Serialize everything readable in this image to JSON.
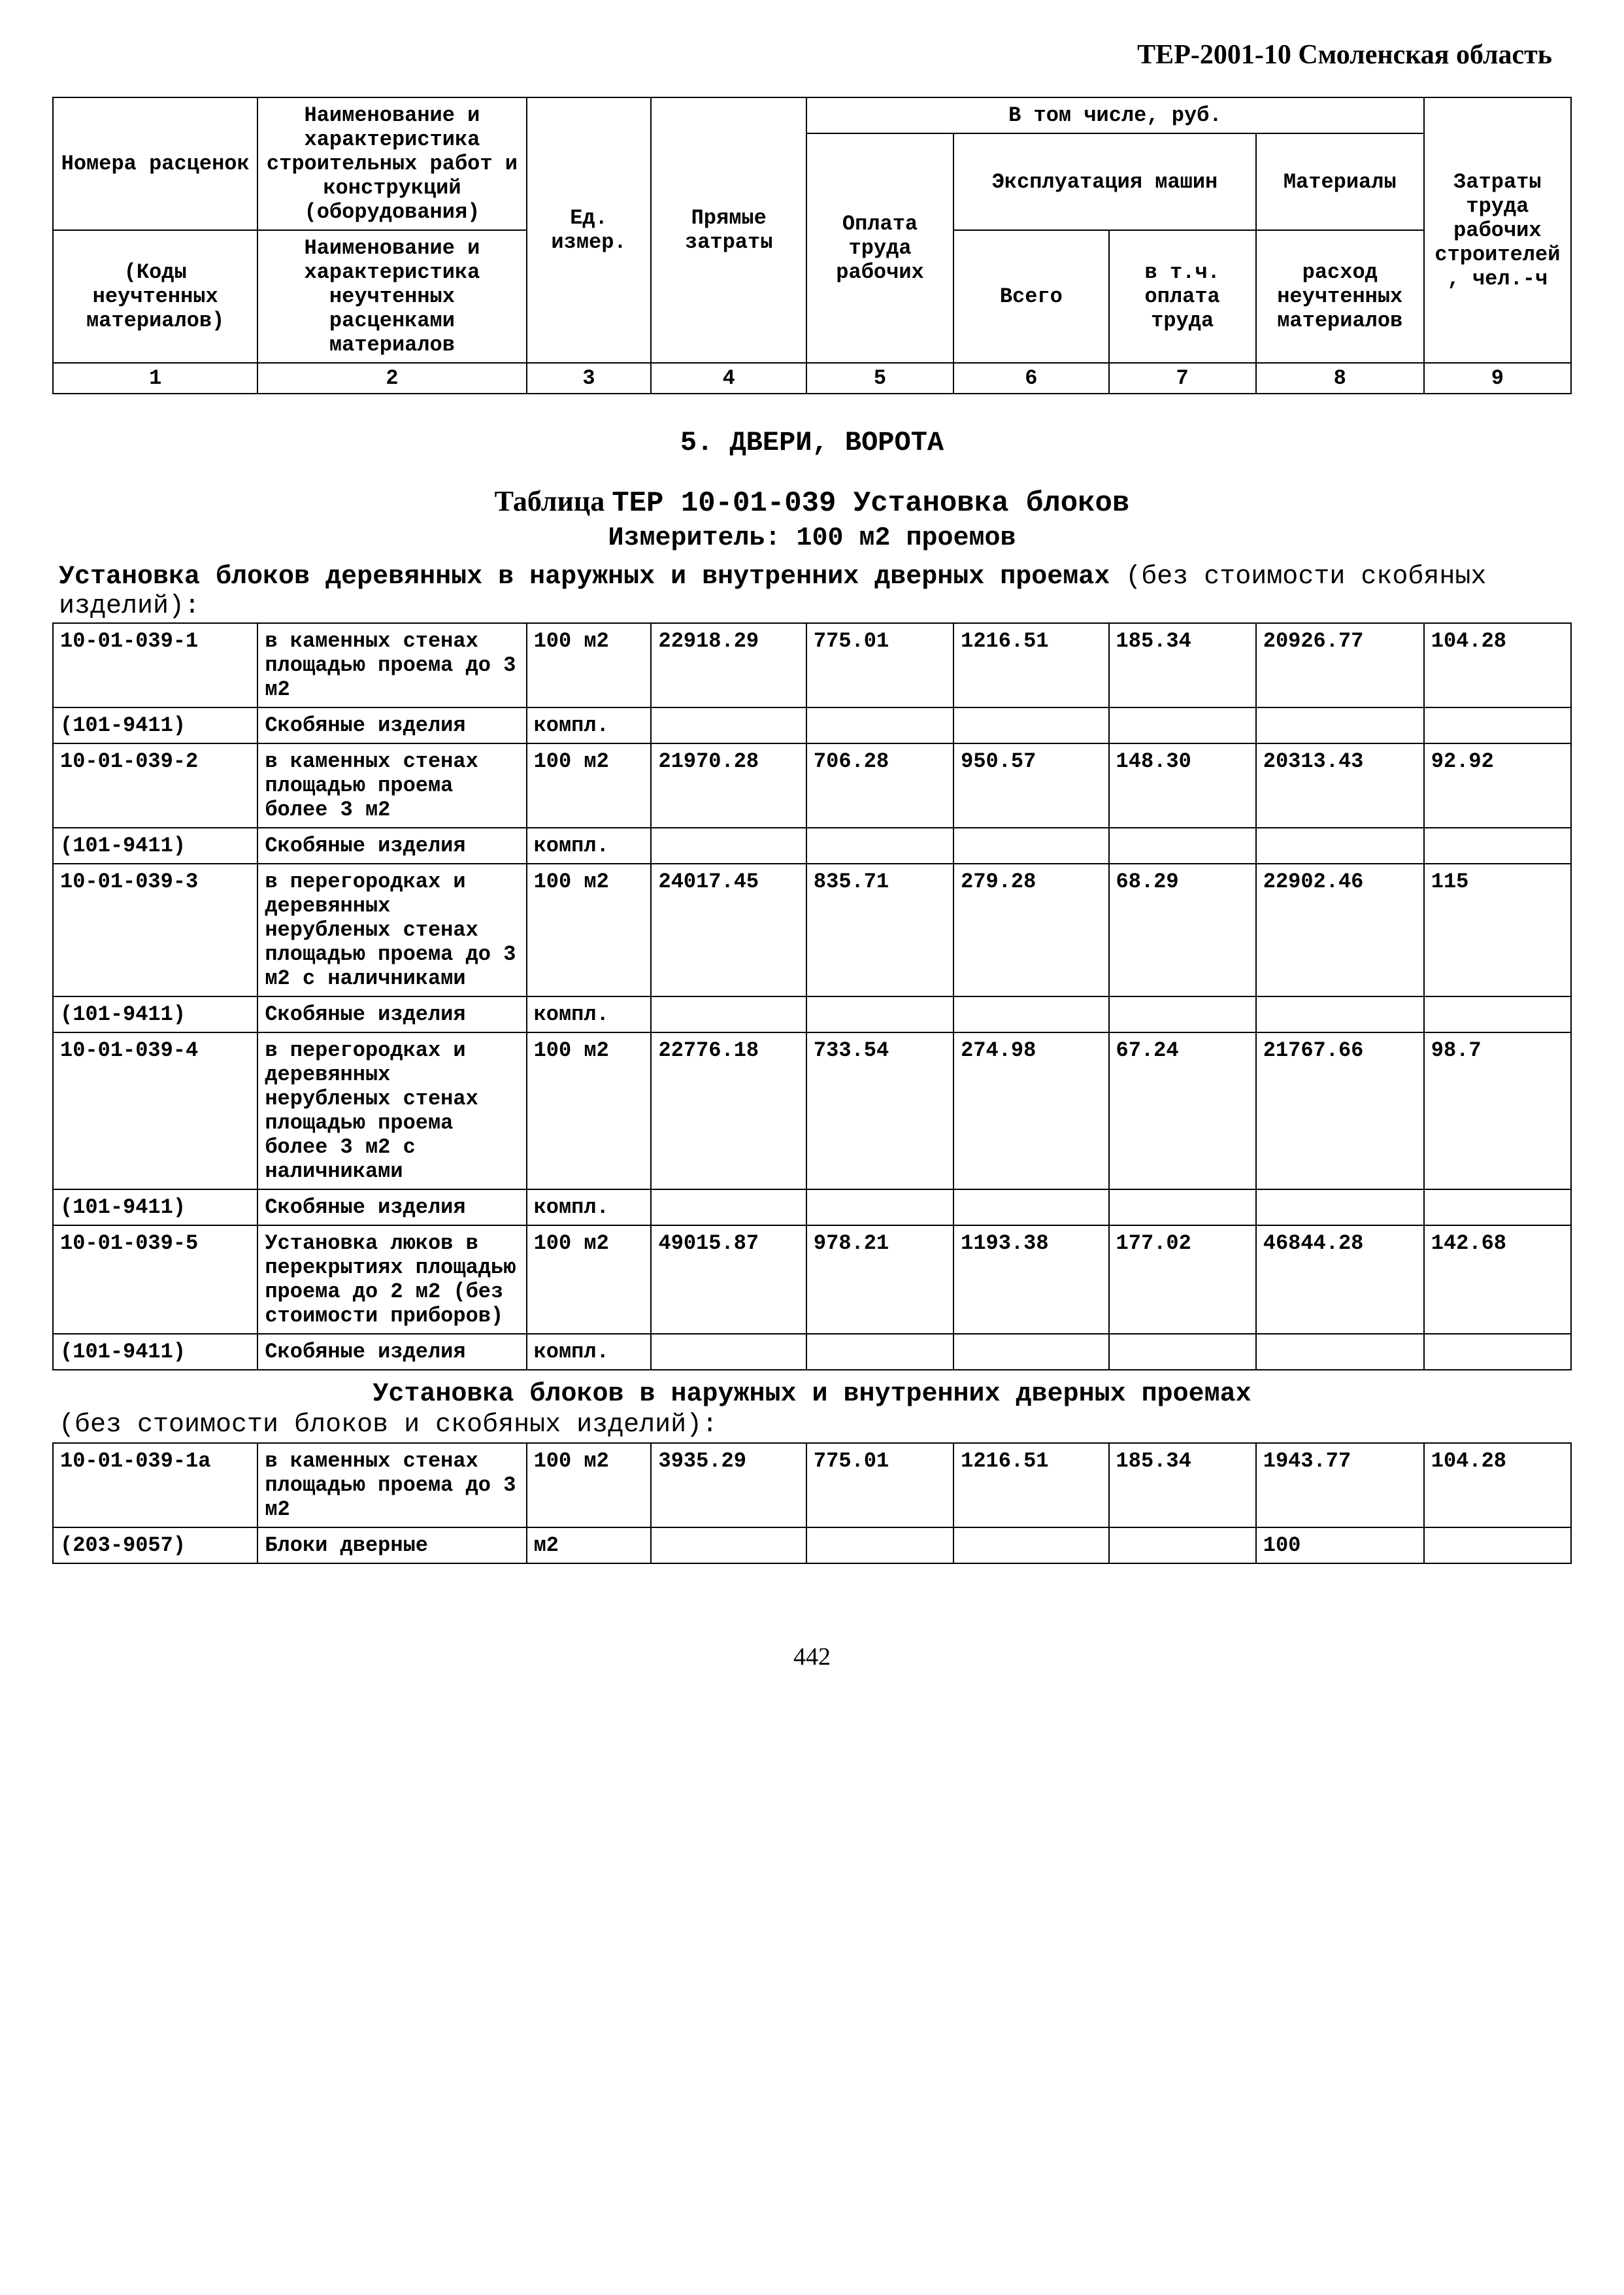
{
  "page_header": "ТЕР-2001-10 Смоленская область",
  "header_table": {
    "r1c1": "Номера расценок",
    "r1c2": "Наименование и характеристика строительных работ и конструкций (оборудования)",
    "r1c3": "Ед. измер.",
    "r1c4": "Прямые затраты",
    "r1c5": "В том числе, руб.",
    "r1c9": "Затраты труда рабочих строителей, чел.-ч",
    "r2c5": "Оплата труда рабочих",
    "r2c6": "Эксплуатация машин",
    "r2c8": "Материалы",
    "r3c1": "(Коды неучтенных материалов)",
    "r3c2": "Наименование и характеристика неучтенных расценками материалов",
    "r3c6": "Всего",
    "r3c7": "в т.ч. оплата труда",
    "r3c8": "расход неучтенных материалов",
    "nums": [
      "1",
      "2",
      "3",
      "4",
      "5",
      "6",
      "7",
      "8",
      "9"
    ]
  },
  "section_title": "5. ДВЕРИ, ВОРОТА",
  "table_title_prefix": "Таблица",
  "table_title_code": "ТЕР 10-01-039 Установка блоков",
  "measure": "Измеритель: 100 м2 проемов",
  "preamble1_bold": "Установка блоков деревянных в наружных и внутренних дверных проемах",
  "preamble1_rest": " (без стоимости скобяных изделий):",
  "colwidths": [
    "12.8%",
    "16.8%",
    "7.8%",
    "9.7%",
    "9.2%",
    "9.7%",
    "9.2%",
    "10.5%",
    "9.2%"
  ],
  "rows1": [
    {
      "c": [
        "10-01-039-1",
        "в каменных стенах площадью проема до 3 м2",
        "100 м2",
        "22918.29",
        "775.01",
        "1216.51",
        "185.34",
        "20926.77",
        "104.28"
      ]
    },
    {
      "c": [
        "(101-9411)",
        "Скобяные изделия",
        "компл.",
        "",
        "",
        "",
        "",
        "",
        ""
      ]
    },
    {
      "c": [
        "10-01-039-2",
        "в каменных стенах площадью проема более 3 м2",
        "100 м2",
        "21970.28",
        "706.28",
        "950.57",
        "148.30",
        "20313.43",
        "92.92"
      ]
    },
    {
      "c": [
        "(101-9411)",
        "Скобяные изделия",
        "компл.",
        "",
        "",
        "",
        "",
        "",
        ""
      ]
    },
    {
      "c": [
        "10-01-039-3",
        "в перегородках и деревянных нерубленых стенах площадью проема до 3 м2 с наличниками",
        "100 м2",
        "24017.45",
        "835.71",
        "279.28",
        "68.29",
        "22902.46",
        "115"
      ]
    },
    {
      "c": [
        "(101-9411)",
        "Скобяные изделия",
        "компл.",
        "",
        "",
        "",
        "",
        "",
        ""
      ]
    },
    {
      "c": [
        "10-01-039-4",
        "в перегородках и деревянных нерубленых стенах площадью проема более 3 м2  с наличниками",
        "100 м2",
        "22776.18",
        "733.54",
        "274.98",
        "67.24",
        "21767.66",
        "98.7"
      ]
    },
    {
      "c": [
        "(101-9411)",
        "Скобяные изделия",
        "компл.",
        "",
        "",
        "",
        "",
        "",
        ""
      ]
    },
    {
      "c": [
        "10-01-039-5",
        "Установка люков в перекрытиях площадью проема до 2 м2 (без стоимости приборов)",
        "100 м2",
        "49015.87",
        "978.21",
        "1193.38",
        "177.02",
        "46844.28",
        "142.68"
      ]
    },
    {
      "c": [
        "(101-9411)",
        "Скобяные изделия",
        "компл.",
        "",
        "",
        "",
        "",
        "",
        ""
      ]
    }
  ],
  "preamble2_bold": "Установка блоков в наружных и внутренних дверных проемах",
  "preamble2_rest": "(без стоимости блоков и  скобяных изделий):",
  "rows2": [
    {
      "c": [
        "10-01-039-1а",
        "в каменных стенах площадью проема до 3 м2",
        "100 м2",
        "3935.29",
        "775.01",
        "1216.51",
        "185.34",
        "1943.77",
        "104.28"
      ]
    },
    {
      "c": [
        "(203-9057)",
        "Блоки дверные",
        "м2",
        "",
        "",
        "",
        "",
        "100",
        ""
      ]
    }
  ],
  "page_number": "442"
}
